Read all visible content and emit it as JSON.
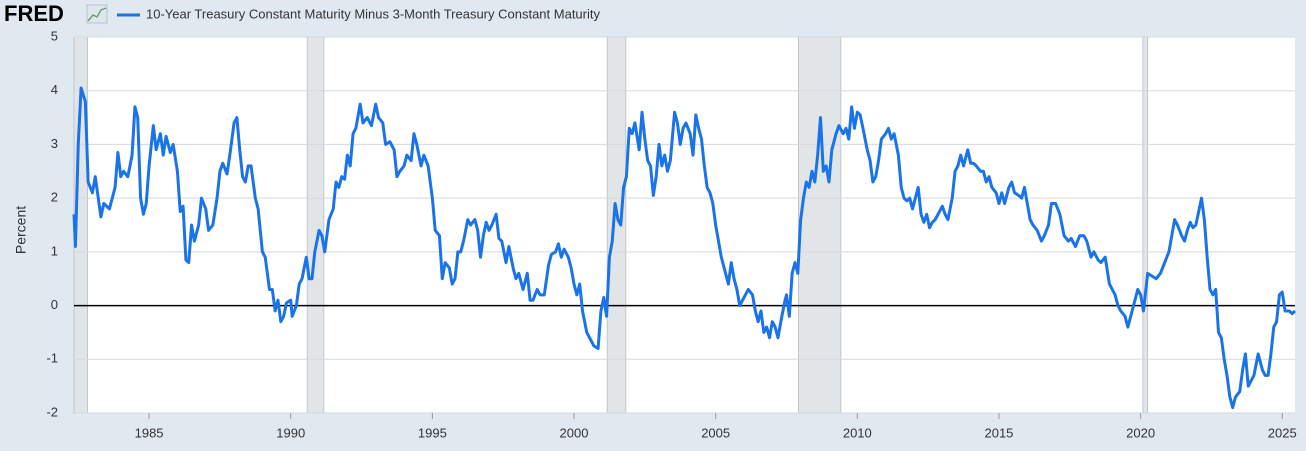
{
  "logo": "FRED",
  "chart_data": {
    "type": "line",
    "ylabel": "Percent",
    "xlim": [
      1982.35,
      2025.45
    ],
    "xticks": [
      1985,
      1990,
      1995,
      2000,
      2005,
      2010,
      2015,
      2020,
      2025
    ],
    "ylim": [
      -2,
      5
    ],
    "yticks": [
      -2,
      -1,
      0,
      1,
      2,
      3,
      4,
      5
    ],
    "grid": true,
    "reference_line": 0,
    "recessions": [
      [
        1981.5,
        1982.83
      ],
      [
        1990.58,
        1991.17
      ],
      [
        2001.17,
        2001.83
      ],
      [
        2007.92,
        2009.42
      ],
      [
        2020.08,
        2020.25
      ]
    ],
    "x": [
      1982.35,
      1982.4,
      1982.5,
      1982.6,
      1982.75,
      1982.85,
      1983.0,
      1983.1,
      1983.3,
      1983.4,
      1983.6,
      1983.8,
      1983.9,
      1984.0,
      1984.1,
      1984.25,
      1984.4,
      1984.5,
      1984.6,
      1984.7,
      1984.8,
      1984.9,
      1985.0,
      1985.15,
      1985.25,
      1985.4,
      1985.5,
      1985.6,
      1985.75,
      1985.85,
      1986.0,
      1986.1,
      1986.2,
      1986.3,
      1986.4,
      1986.5,
      1986.6,
      1986.75,
      1986.85,
      1987.0,
      1987.1,
      1987.25,
      1987.4,
      1987.5,
      1987.6,
      1987.75,
      1987.85,
      1988.0,
      1988.1,
      1988.2,
      1988.3,
      1988.4,
      1988.5,
      1988.6,
      1988.75,
      1988.85,
      1989.0,
      1989.1,
      1989.25,
      1989.35,
      1989.45,
      1989.55,
      1989.65,
      1989.75,
      1989.85,
      1990.0,
      1990.05,
      1990.2,
      1990.3,
      1990.4,
      1990.55,
      1990.65,
      1990.75,
      1990.85,
      1991.0,
      1991.1,
      1991.2,
      1991.35,
      1991.5,
      1991.6,
      1991.7,
      1991.8,
      1991.9,
      1992.0,
      1992.1,
      1992.2,
      1992.3,
      1992.45,
      1992.55,
      1992.7,
      1992.85,
      1993.0,
      1993.1,
      1993.25,
      1993.35,
      1993.5,
      1993.65,
      1993.75,
      1993.85,
      1994.0,
      1994.1,
      1994.25,
      1994.35,
      1994.45,
      1994.6,
      1994.7,
      1994.85,
      1995.0,
      1995.1,
      1995.25,
      1995.35,
      1995.45,
      1995.6,
      1995.7,
      1995.8,
      1995.9,
      1996.0,
      1996.1,
      1996.25,
      1996.35,
      1996.5,
      1996.6,
      1996.7,
      1996.8,
      1996.9,
      1997.0,
      1997.1,
      1997.25,
      1997.35,
      1997.45,
      1997.6,
      1997.7,
      1997.85,
      1997.95,
      1998.05,
      1998.2,
      1998.35,
      1998.45,
      1998.55,
      1998.7,
      1998.8,
      1998.95,
      1999.1,
      1999.2,
      1999.35,
      1999.45,
      1999.55,
      1999.65,
      1999.8,
      1999.9,
      2000.0,
      2000.1,
      2000.2,
      2000.3,
      2000.45,
      2000.55,
      2000.7,
      2000.85,
      2000.95,
      2001.05,
      2001.15,
      2001.25,
      2001.35,
      2001.45,
      2001.55,
      2001.65,
      2001.75,
      2001.85,
      2001.95,
      2002.05,
      2002.15,
      2002.3,
      2002.4,
      2002.5,
      2002.6,
      2002.7,
      2002.8,
      2002.9,
      2003.0,
      2003.1,
      2003.2,
      2003.3,
      2003.4,
      2003.55,
      2003.65,
      2003.75,
      2003.85,
      2003.95,
      2004.1,
      2004.2,
      2004.3,
      2004.4,
      2004.5,
      2004.6,
      2004.7,
      2004.8,
      2004.9,
      2005.0,
      2005.1,
      2005.2,
      2005.3,
      2005.45,
      2005.55,
      2005.65,
      2005.75,
      2005.85,
      2005.95,
      2006.05,
      2006.15,
      2006.3,
      2006.4,
      2006.5,
      2006.6,
      2006.7,
      2006.8,
      2006.9,
      2007.0,
      2007.1,
      2007.2,
      2007.3,
      2007.45,
      2007.5,
      2007.6,
      2007.7,
      2007.8,
      2007.9,
      2008.0,
      2008.1,
      2008.2,
      2008.3,
      2008.4,
      2008.5,
      2008.6,
      2008.7,
      2008.8,
      2008.9,
      2009.0,
      2009.1,
      2009.25,
      2009.35,
      2009.5,
      2009.6,
      2009.7,
      2009.8,
      2009.9,
      2010.0,
      2010.1,
      2010.2,
      2010.35,
      2010.45,
      2010.55,
      2010.65,
      2010.75,
      2010.85,
      2011.0,
      2011.1,
      2011.2,
      2011.3,
      2011.45,
      2011.55,
      2011.65,
      2011.75,
      2011.85,
      2011.95,
      2012.05,
      2012.15,
      2012.25,
      2012.35,
      2012.45,
      2012.55,
      2012.65,
      2012.75,
      2012.85,
      2013.0,
      2013.1,
      2013.2,
      2013.35,
      2013.45,
      2013.55,
      2013.65,
      2013.75,
      2013.9,
      2014.0,
      2014.1,
      2014.2,
      2014.35,
      2014.45,
      2014.55,
      2014.65,
      2014.75,
      2014.9,
      2015.0,
      2015.1,
      2015.2,
      2015.35,
      2015.45,
      2015.55,
      2015.7,
      2015.8,
      2015.9,
      2016.0,
      2016.1,
      2016.2,
      2016.35,
      2016.5,
      2016.6,
      2016.75,
      2016.85,
      2017.0,
      2017.15,
      2017.3,
      2017.45,
      2017.55,
      2017.7,
      2017.85,
      2018.0,
      2018.1,
      2018.25,
      2018.35,
      2018.5,
      2018.6,
      2018.75,
      2018.9,
      2019.0,
      2019.1,
      2019.2,
      2019.3,
      2019.45,
      2019.55,
      2019.65,
      2019.8,
      2019.9,
      2020.0,
      2020.1,
      2020.25,
      2020.4,
      2020.55,
      2020.7,
      2020.85,
      2021.0,
      2021.1,
      2021.2,
      2021.3,
      2021.45,
      2021.55,
      2021.65,
      2021.75,
      2021.85,
      2021.95,
      2022.05,
      2022.15,
      2022.25,
      2022.35,
      2022.45,
      2022.55,
      2022.65,
      2022.75,
      2022.85,
      2022.95,
      2023.05,
      2023.15,
      2023.25,
      2023.35,
      2023.5,
      2023.6,
      2023.7,
      2023.8,
      2023.9,
      2024.0,
      2024.15,
      2024.3,
      2024.4,
      2024.5,
      2024.6,
      2024.7,
      2024.8,
      2024.9,
      2025.0,
      2025.1,
      2025.25,
      2025.35,
      2025.45
    ],
    "series": [
      {
        "name": "10-Year Treasury Constant Maturity Minus 3-Month Treasury Constant Maturity",
        "color": "#1a73e8",
        "values": [
          1.7,
          1.1,
          3.0,
          4.05,
          3.8,
          2.3,
          2.1,
          2.4,
          1.65,
          1.9,
          1.8,
          2.2,
          2.85,
          2.4,
          2.5,
          2.4,
          2.8,
          3.7,
          3.5,
          2.0,
          1.7,
          1.9,
          2.6,
          3.35,
          2.9,
          3.2,
          2.8,
          3.15,
          2.85,
          3.0,
          2.5,
          1.75,
          1.85,
          0.85,
          0.8,
          1.5,
          1.2,
          1.5,
          2.0,
          1.8,
          1.4,
          1.5,
          2.0,
          2.5,
          2.65,
          2.45,
          2.8,
          3.4,
          3.5,
          2.9,
          2.4,
          2.3,
          2.6,
          2.6,
          2.0,
          1.8,
          1.0,
          0.9,
          0.3,
          0.3,
          -0.1,
          0.1,
          -0.3,
          -0.2,
          0.05,
          0.1,
          -0.2,
          0.0,
          0.4,
          0.5,
          0.9,
          0.5,
          0.5,
          1.0,
          1.4,
          1.3,
          1.0,
          1.6,
          1.8,
          2.3,
          2.2,
          2.4,
          2.35,
          2.8,
          2.6,
          3.2,
          3.3,
          3.75,
          3.4,
          3.5,
          3.35,
          3.75,
          3.5,
          3.4,
          3.0,
          3.05,
          2.9,
          2.4,
          2.5,
          2.6,
          2.8,
          2.7,
          3.2,
          3.0,
          2.6,
          2.8,
          2.6,
          2.0,
          1.4,
          1.3,
          0.5,
          0.8,
          0.7,
          0.4,
          0.5,
          1.0,
          1.0,
          1.2,
          1.6,
          1.5,
          1.6,
          1.4,
          0.9,
          1.3,
          1.55,
          1.4,
          1.5,
          1.7,
          1.25,
          1.2,
          0.8,
          1.1,
          0.7,
          0.5,
          0.6,
          0.3,
          0.6,
          0.1,
          0.1,
          0.3,
          0.2,
          0.2,
          0.75,
          0.95,
          1.0,
          1.15,
          0.9,
          1.05,
          0.9,
          0.7,
          0.4,
          0.2,
          0.4,
          -0.1,
          -0.5,
          -0.6,
          -0.75,
          -0.8,
          -0.1,
          0.15,
          -0.2,
          0.9,
          1.2,
          1.9,
          1.6,
          1.5,
          2.2,
          2.4,
          3.3,
          3.2,
          3.4,
          2.9,
          3.6,
          3.1,
          2.7,
          2.6,
          2.05,
          2.4,
          3.0,
          2.6,
          2.8,
          2.5,
          2.7,
          3.6,
          3.4,
          3.0,
          3.3,
          3.4,
          3.2,
          2.8,
          3.55,
          3.3,
          3.1,
          2.6,
          2.2,
          2.1,
          1.9,
          1.5,
          1.2,
          0.9,
          0.7,
          0.4,
          0.8,
          0.5,
          0.3,
          0.0,
          0.1,
          0.2,
          0.3,
          0.2,
          -0.1,
          -0.3,
          -0.1,
          -0.5,
          -0.4,
          -0.6,
          -0.3,
          -0.4,
          -0.6,
          -0.3,
          0.1,
          0.2,
          -0.2,
          0.6,
          0.8,
          0.6,
          1.6,
          2.0,
          2.3,
          2.2,
          2.5,
          2.3,
          2.8,
          3.5,
          2.5,
          2.6,
          2.3,
          2.9,
          3.2,
          3.35,
          3.2,
          3.3,
          3.1,
          3.7,
          3.3,
          3.6,
          3.55,
          3.3,
          2.9,
          2.7,
          2.3,
          2.4,
          2.7,
          3.1,
          3.2,
          3.3,
          3.1,
          3.2,
          2.8,
          2.2,
          2.0,
          1.95,
          2.0,
          1.8,
          2.0,
          2.2,
          1.7,
          1.55,
          1.7,
          1.45,
          1.55,
          1.6,
          1.7,
          1.85,
          1.7,
          1.6,
          2.0,
          2.5,
          2.6,
          2.8,
          2.6,
          2.9,
          2.65,
          2.65,
          2.6,
          2.5,
          2.5,
          2.3,
          2.4,
          2.2,
          2.1,
          1.9,
          2.1,
          1.9,
          2.2,
          2.3,
          2.1,
          2.05,
          2.0,
          2.2,
          1.9,
          1.6,
          1.5,
          1.4,
          1.2,
          1.3,
          1.5,
          1.9,
          1.9,
          1.7,
          1.3,
          1.2,
          1.25,
          1.1,
          1.3,
          1.3,
          1.2,
          0.9,
          1.0,
          0.85,
          0.8,
          0.9,
          0.4,
          0.3,
          0.2,
          0.0,
          -0.1,
          -0.2,
          -0.4,
          -0.2,
          0.1,
          0.3,
          0.2,
          -0.1,
          0.6,
          0.55,
          0.5,
          0.6,
          0.8,
          1.0,
          1.3,
          1.6,
          1.5,
          1.3,
          1.2,
          1.4,
          1.55,
          1.45,
          1.5,
          1.75,
          2.0,
          1.6,
          0.9,
          0.3,
          0.2,
          0.3,
          -0.5,
          -0.6,
          -1.0,
          -1.3,
          -1.7,
          -1.9,
          -1.7,
          -1.6,
          -1.2,
          -0.9,
          -1.5,
          -1.4,
          -1.3,
          -0.9,
          -1.2,
          -1.3,
          -1.3,
          -0.9,
          -0.4,
          -0.3,
          0.2,
          0.25,
          -0.1,
          -0.1,
          -0.15,
          -0.1
        ]
      }
    ]
  }
}
